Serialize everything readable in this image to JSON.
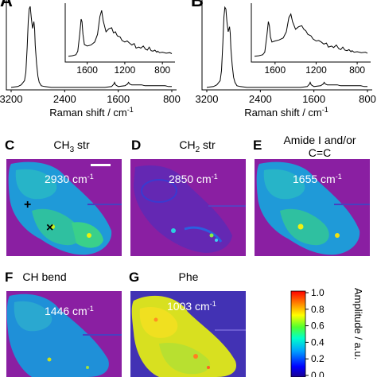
{
  "chart_data": [
    {
      "panel": "A",
      "type": "line",
      "xlabel": "Raman shift / cm",
      "xlabel_superscript": "-1",
      "xticks": [
        "3200",
        "2400",
        "1600",
        "800"
      ],
      "xlim": [
        3200,
        800
      ],
      "series": [
        {
          "x": [
            3200,
            3100,
            3050,
            3000,
            2980,
            2960,
            2945,
            2930,
            2915,
            2900,
            2880,
            2860,
            2850,
            2840,
            2820,
            2800,
            2780,
            2750,
            2700,
            2600,
            2400,
            2200,
            2000,
            1800,
            1700,
            1665,
            1655,
            1640,
            1600,
            1500,
            1460,
            1446,
            1430,
            1400,
            1340,
            1300,
            1250,
            1200,
            1150,
            1100,
            1050,
            1003,
            960,
            900,
            850,
            800
          ],
          "y": [
            0.02,
            0.03,
            0.05,
            0.1,
            0.2,
            0.5,
            0.8,
            0.95,
            0.98,
            0.85,
            0.72,
            0.8,
            0.72,
            0.52,
            0.3,
            0.15,
            0.08,
            0.04,
            0.03,
            0.02,
            0.02,
            0.02,
            0.02,
            0.02,
            0.03,
            0.06,
            0.08,
            0.05,
            0.03,
            0.04,
            0.06,
            0.08,
            0.06,
            0.05,
            0.05,
            0.05,
            0.05,
            0.04,
            0.04,
            0.04,
            0.04,
            0.04,
            0.04,
            0.04,
            0.03,
            0.03
          ]
        }
      ],
      "inset": {
        "xticks": [
          "1600",
          "1200",
          "800"
        ],
        "xlim": [
          1800,
          700
        ],
        "series": [
          {
            "x": [
              1800,
              1760,
              1720,
              1700,
              1680,
              1665,
              1655,
              1645,
              1630,
              1600,
              1560,
              1520,
              1490,
              1465,
              1446,
              1430,
              1400,
              1370,
              1340,
              1320,
              1300,
              1280,
              1250,
              1230,
              1200,
              1175,
              1150,
              1125,
              1100,
              1080,
              1050,
              1030,
              1003,
              980,
              960,
              940,
              920,
              900,
              880,
              860,
              850,
              830,
              800,
              760,
              720,
              700
            ],
            "y": [
              0.02,
              0.03,
              0.05,
              0.12,
              0.45,
              0.75,
              0.7,
              0.45,
              0.25,
              0.22,
              0.24,
              0.3,
              0.45,
              0.8,
              0.92,
              0.72,
              0.5,
              0.56,
              0.58,
              0.48,
              0.5,
              0.42,
              0.4,
              0.33,
              0.3,
              0.32,
              0.28,
              0.24,
              0.27,
              0.18,
              0.2,
              0.18,
              0.22,
              0.16,
              0.14,
              0.2,
              0.13,
              0.12,
              0.14,
              0.1,
              0.12,
              0.09,
              0.1,
              0.08,
              0.09,
              0.07
            ]
          }
        ]
      }
    },
    {
      "panel": "B",
      "type": "line",
      "xlabel": "Raman shift / cm",
      "xlabel_superscript": "-1",
      "xticks": [
        "3200",
        "2400",
        "1600",
        "800"
      ],
      "xlim": [
        3200,
        800
      ],
      "series": [
        {
          "x": [
            3200,
            3100,
            3050,
            3000,
            2980,
            2960,
            2945,
            2930,
            2915,
            2900,
            2880,
            2860,
            2850,
            2840,
            2820,
            2800,
            2780,
            2750,
            2700,
            2600,
            2400,
            2200,
            2000,
            1800,
            1700,
            1665,
            1655,
            1640,
            1600,
            1500,
            1460,
            1446,
            1430,
            1400,
            1340,
            1300,
            1250,
            1200,
            1150,
            1100,
            1050,
            1003,
            960,
            900,
            850,
            800
          ],
          "y": [
            0.02,
            0.03,
            0.05,
            0.1,
            0.22,
            0.55,
            0.85,
            0.97,
            0.95,
            0.8,
            0.68,
            0.74,
            0.66,
            0.48,
            0.28,
            0.14,
            0.08,
            0.04,
            0.03,
            0.02,
            0.02,
            0.02,
            0.02,
            0.02,
            0.03,
            0.06,
            0.08,
            0.05,
            0.03,
            0.04,
            0.06,
            0.08,
            0.06,
            0.05,
            0.05,
            0.05,
            0.05,
            0.04,
            0.04,
            0.04,
            0.04,
            0.04,
            0.04,
            0.04,
            0.03,
            0.03
          ]
        }
      ],
      "inset": {
        "xticks": [
          "1600",
          "1200",
          "800"
        ],
        "xlim": [
          1800,
          700
        ],
        "series": [
          {
            "x": [
              1800,
              1760,
              1720,
              1700,
              1680,
              1665,
              1655,
              1645,
              1630,
              1600,
              1560,
              1520,
              1490,
              1465,
              1446,
              1430,
              1400,
              1370,
              1340,
              1320,
              1300,
              1280,
              1250,
              1230,
              1200,
              1175,
              1150,
              1125,
              1100,
              1080,
              1050,
              1030,
              1003,
              980,
              960,
              940,
              920,
              900,
              880,
              860,
              850,
              830,
              800,
              760,
              720,
              700
            ],
            "y": [
              0.02,
              0.03,
              0.05,
              0.1,
              0.42,
              0.7,
              0.62,
              0.4,
              0.3,
              0.32,
              0.34,
              0.38,
              0.5,
              0.78,
              0.85,
              0.7,
              0.55,
              0.6,
              0.62,
              0.55,
              0.52,
              0.45,
              0.42,
              0.36,
              0.32,
              0.33,
              0.3,
              0.26,
              0.28,
              0.2,
              0.22,
              0.19,
              0.24,
              0.17,
              0.15,
              0.2,
              0.14,
              0.13,
              0.15,
              0.11,
              0.13,
              0.1,
              0.11,
              0.09,
              0.1,
              0.08
            ]
          }
        ]
      }
    },
    {
      "type": "heatmap",
      "colorbar": {
        "label": "Amplitude / a.u.",
        "ticks": [
          "1.0",
          "0.8",
          "0.6",
          "0.4",
          "0.2",
          "0.0"
        ],
        "range": [
          0,
          1
        ],
        "colormap": "jet",
        "background": "#8a1fa2"
      },
      "images": [
        {
          "panel": "C",
          "title": "CH",
          "title_sub": "3",
          "title_rest": " str",
          "wavenumber_label": "2930 cm",
          "wavenumber_sup": "-1",
          "mean_level": 0.35
        },
        {
          "panel": "D",
          "title": "CH",
          "title_sub": "2",
          "title_rest": " str",
          "wavenumber_label": "2850 cm",
          "wavenumber_sup": "-1",
          "mean_level": 0.15
        },
        {
          "panel": "E",
          "title": "Amide I and/or",
          "title_line2": "C=C",
          "wavenumber_label": "1655 cm",
          "wavenumber_sup": "-1",
          "mean_level": 0.35
        },
        {
          "panel": "F",
          "title": "CH bend",
          "wavenumber_label": "1446 cm",
          "wavenumber_sup": "-1",
          "mean_level": 0.3
        },
        {
          "panel": "G",
          "title": "Phe",
          "wavenumber_label": "1003 cm",
          "wavenumber_sup": "-1",
          "mean_level": 0.75
        }
      ]
    }
  ]
}
